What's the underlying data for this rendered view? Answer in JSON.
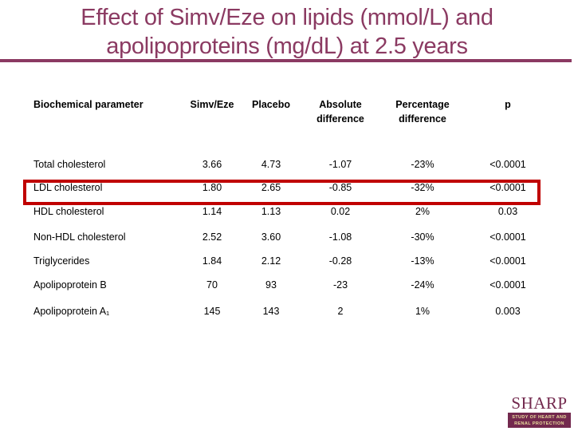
{
  "slide": {
    "title_line1": "Effect of Simv/Eze on lipids (mmol/L) and",
    "title_line2": "apolipoproteins (mg/dL) at 2.5 years",
    "accent_color": "#8B3A62",
    "highlight_color": "#C00000",
    "background_color": "#FFFFFF"
  },
  "table": {
    "headers": [
      "Biochemical parameter",
      "Simv/Eze",
      "Placebo",
      "Absolute difference",
      "Percentage difference",
      "p"
    ],
    "rows": [
      {
        "label": "Total cholesterol",
        "values": [
          "3.66",
          "4.73",
          "-1.07",
          "-23%",
          "<0.0001"
        ]
      },
      {
        "label": "LDL cholesterol",
        "values": [
          "1.80",
          "2.65",
          "-0.85",
          "-32%",
          "<0.0001"
        ],
        "highlighted": true
      },
      {
        "label": "HDL cholesterol",
        "values": [
          "1.14",
          "1.13",
          "0.02",
          "2%",
          "0.03"
        ]
      },
      {
        "label": "Non-HDL cholesterol",
        "values": [
          "2.52",
          "3.60",
          "-1.08",
          "-30%",
          "<0.0001"
        ]
      },
      {
        "label": "Triglycerides",
        "values": [
          "1.84",
          "2.12",
          "-0.28",
          "-13%",
          "<0.0001"
        ]
      },
      {
        "label": "Apolipoprotein B",
        "values": [
          "70",
          "93",
          "-23",
          "-24%",
          "<0.0001"
        ]
      },
      {
        "label": "Apolipoprotein A₁",
        "values": [
          "145",
          "143",
          "2",
          "1%",
          "0.003"
        ]
      }
    ]
  },
  "logo": {
    "name": "SHARP",
    "subtitle_line1": "STUDY OF HEART AND",
    "subtitle_line2": "RENAL PROTECTION",
    "color": "#73294E",
    "text_color": "#E9DD9C"
  }
}
